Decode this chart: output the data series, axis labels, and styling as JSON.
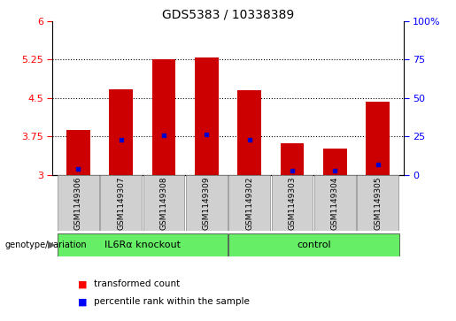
{
  "title": "GDS5383 / 10338389",
  "samples": [
    "GSM1149306",
    "GSM1149307",
    "GSM1149308",
    "GSM1149309",
    "GSM1149302",
    "GSM1149303",
    "GSM1149304",
    "GSM1149305"
  ],
  "bar_bottoms": [
    3.0,
    3.0,
    3.0,
    3.0,
    3.0,
    3.0,
    3.0,
    3.0
  ],
  "bar_tops": [
    3.87,
    4.67,
    5.25,
    5.29,
    4.65,
    3.62,
    3.52,
    4.42
  ],
  "blue_markers": [
    3.12,
    3.68,
    3.77,
    3.79,
    3.68,
    3.08,
    3.08,
    3.2
  ],
  "ylim_left": [
    3.0,
    6.0
  ],
  "ylim_right": [
    0,
    100
  ],
  "yticks_left": [
    3.0,
    3.75,
    4.5,
    5.25,
    6.0
  ],
  "yticks_right": [
    0,
    25,
    50,
    75,
    100
  ],
  "ytick_labels_left": [
    "3",
    "3.75",
    "4.5",
    "5.25",
    "6"
  ],
  "ytick_labels_right": [
    "0",
    "25",
    "50",
    "75",
    "100%"
  ],
  "bar_color": "#cc0000",
  "blue_color": "#0000cc",
  "background_color": "#ffffff",
  "plot_bg": "#ffffff",
  "group1_label": "IL6Rα knockout",
  "group2_label": "control",
  "group1_color": "#66ee66",
  "group2_color": "#66ee66",
  "group1_indices": [
    0,
    1,
    2,
    3
  ],
  "group2_indices": [
    4,
    5,
    6,
    7
  ],
  "sample_box_color": "#d0d0d0",
  "genotype_label": "genotype/variation",
  "legend_red": "transformed count",
  "legend_blue": "percentile rank within the sample",
  "title_fontsize": 10,
  "tick_fontsize": 8,
  "label_fontsize": 6.5,
  "group_fontsize": 8,
  "legend_fontsize": 7.5,
  "bar_width": 0.55
}
